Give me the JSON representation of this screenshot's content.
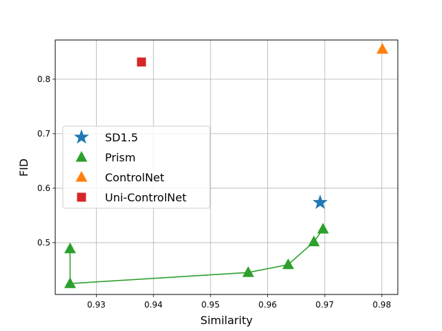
{
  "chart_data": {
    "type": "scatter",
    "xlabel": "Similarity",
    "ylabel": "FID",
    "xlim": [
      0.9228,
      0.9828
    ],
    "ylim": [
      0.405,
      0.872
    ],
    "xticks": [
      0.93,
      0.94,
      0.95,
      0.96,
      0.97,
      0.98
    ],
    "yticks": [
      0.5,
      0.6,
      0.7,
      0.8
    ],
    "xtick_labels": [
      "0.93",
      "0.94",
      "0.95",
      "0.96",
      "0.97",
      "0.98"
    ],
    "ytick_labels": [
      "0.5",
      "0.6",
      "0.7",
      "0.8"
    ],
    "grid": true,
    "legend_position": "center-left",
    "series": [
      {
        "name": "SD1.5",
        "marker": "star",
        "color": "#1f77b4",
        "line": false,
        "x": [
          0.9692
        ],
        "y": [
          0.5737
        ]
      },
      {
        "name": "Prism",
        "marker": "triangle",
        "color": "#2ca02c",
        "line": true,
        "x": [
          0.9254,
          0.9254,
          0.9566,
          0.9636,
          0.9681,
          0.9697
        ],
        "y": [
          0.4889,
          0.425,
          0.4453,
          0.4597,
          0.5016,
          0.525
        ]
      },
      {
        "name": "ControlNet",
        "marker": "triangle",
        "color": "#ff7f0e",
        "line": false,
        "x": [
          0.9801
        ],
        "y": [
          0.855
        ]
      },
      {
        "name": "Uni-ControlNet",
        "marker": "square",
        "color": "#d62728",
        "line": false,
        "x": [
          0.9379
        ],
        "y": [
          0.8316
        ]
      }
    ]
  }
}
